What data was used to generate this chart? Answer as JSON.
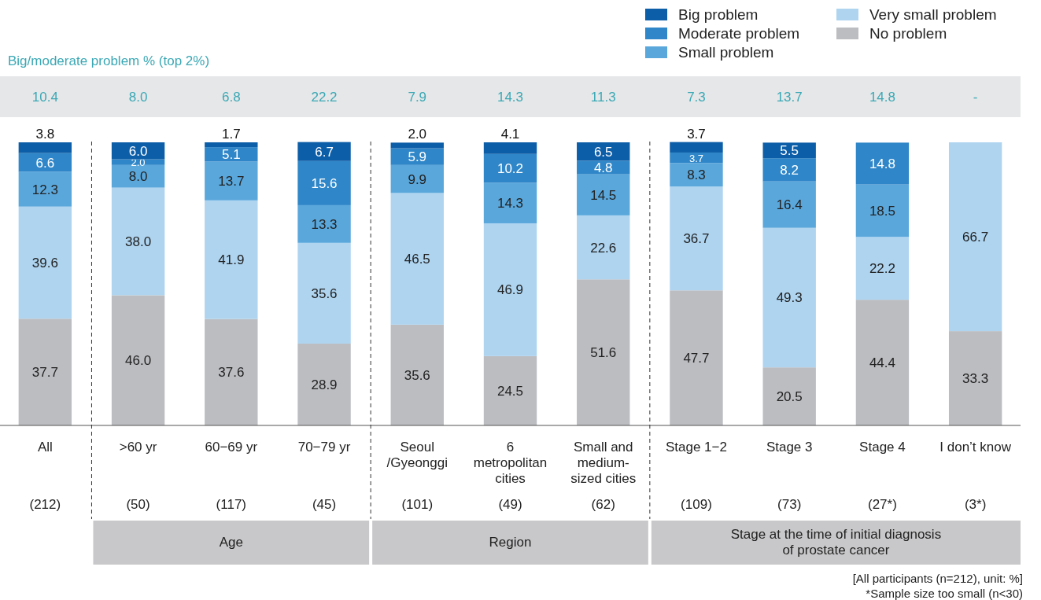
{
  "chart_data": {
    "type": "bar",
    "stacked": true,
    "legend": "top right",
    "tick_labels": "x",
    "ylim": [
      0,
      100
    ],
    "categories": [
      "All",
      ">60 yr",
      "60−69 yr",
      "70−79 yr",
      "Seoul\n/Gyeonggi",
      "6\nmetropolitan\ncities",
      "Small and\nmedium-\nsized cities",
      "Stage 1−2",
      "Stage 3",
      "Stage 4",
      "I don’t know"
    ],
    "series": [
      {
        "name": "No problem",
        "color": "#bcbdc1",
        "values": [
          37.7,
          46.0,
          37.6,
          28.9,
          35.6,
          24.5,
          51.6,
          47.7,
          20.5,
          44.4,
          33.3
        ],
        "value_labels": [
          "37.7",
          "46.0",
          "37.6",
          "28.9",
          "35.6",
          "24.5",
          "51.6",
          "47.7",
          "20.5",
          "44.4",
          "33.3"
        ]
      },
      {
        "name": "Very small problem",
        "color": "#aed4f0",
        "values": [
          39.6,
          38.0,
          41.9,
          35.6,
          46.5,
          46.9,
          22.6,
          36.7,
          49.3,
          22.2,
          66.7
        ],
        "value_labels": [
          "39.6",
          "38.0",
          "41.9",
          "35.6",
          "46.5",
          "46.9",
          "22.6",
          "36.7",
          "49.3",
          "22.2",
          "66.7"
        ]
      },
      {
        "name": "Small problem",
        "color": "#5aa7dc",
        "values": [
          12.3,
          8.0,
          13.7,
          13.3,
          9.9,
          14.3,
          14.5,
          8.3,
          16.4,
          18.5,
          null
        ],
        "value_labels": [
          "12.3",
          "8.0",
          "13.7",
          "13.3",
          "9.9",
          "14.3",
          "14.5",
          "8.3",
          "16.4",
          "18.5",
          null
        ]
      },
      {
        "name": "Moderate problem",
        "color": "#2f86c8",
        "values": [
          6.6,
          2.0,
          5.1,
          15.6,
          5.9,
          10.2,
          4.8,
          3.7,
          8.2,
          14.8,
          null
        ],
        "value_labels": [
          "6.6",
          "2.0",
          "5.1",
          "15.6",
          "5.9",
          "10.2",
          "4.8",
          "3.7",
          "8.2",
          "14.8",
          null
        ]
      },
      {
        "name": "Big problem",
        "color": "#0d5ea8",
        "values": [
          3.8,
          6.0,
          1.7,
          6.7,
          2.0,
          4.1,
          6.5,
          3.7,
          5.5,
          null,
          null
        ],
        "value_labels": [
          "3.8",
          "6.0",
          "1.7",
          "6.7",
          "2.0",
          "4.1",
          "6.5",
          "3.7",
          "5.5",
          null,
          null
        ]
      }
    ],
    "annotations": [
      "Big/moderate problem % (top 2%)",
      "10.4",
      "8.0",
      "6.8",
      "22.2",
      "7.9",
      "14.3",
      "11.3",
      "7.3",
      "13.7",
      "14.8",
      "-",
      "(212)",
      "(50)",
      "(117)",
      "(45)",
      "(101)",
      "(49)",
      "(62)",
      "(109)",
      "(73)",
      "(27*)",
      "(3*)",
      "Age",
      "Region",
      "Stage at the time of initial diagnosis\nof prostate cancer",
      "[All participants (n=212), unit: %]",
      "*Sample size too small (n<30)"
    ]
  }
}
